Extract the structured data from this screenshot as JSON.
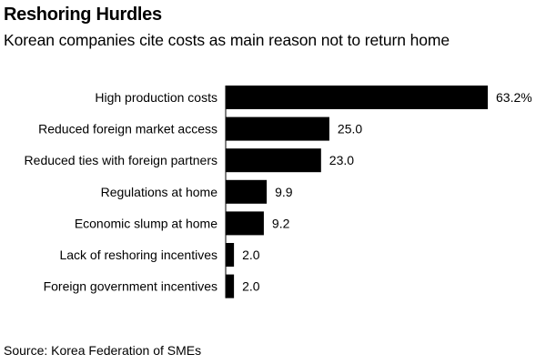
{
  "chart_data": {
    "type": "bar",
    "orientation": "horizontal",
    "title": "Reshoring Hurdles",
    "subtitle": "Korean companies cite costs as main reason not to return home",
    "categories": [
      "High production costs",
      "Reduced foreign market access",
      "Reduced ties with foreign partners",
      "Regulations at home",
      "Economic slump at home",
      "Lack of reshoring incentives",
      "Foreign government incentives"
    ],
    "values": [
      63.2,
      25.0,
      23.0,
      9.9,
      9.2,
      2.0,
      2.0
    ],
    "value_labels": [
      "63.2%",
      "25.0",
      "23.0",
      "9.9",
      "9.2",
      "2.0",
      "2.0"
    ],
    "xlim": [
      0,
      63.2
    ],
    "unit": "%",
    "source": "Source: Korea Federation of SMEs",
    "bar_color": "#000000",
    "grid": false,
    "legend": false
  }
}
